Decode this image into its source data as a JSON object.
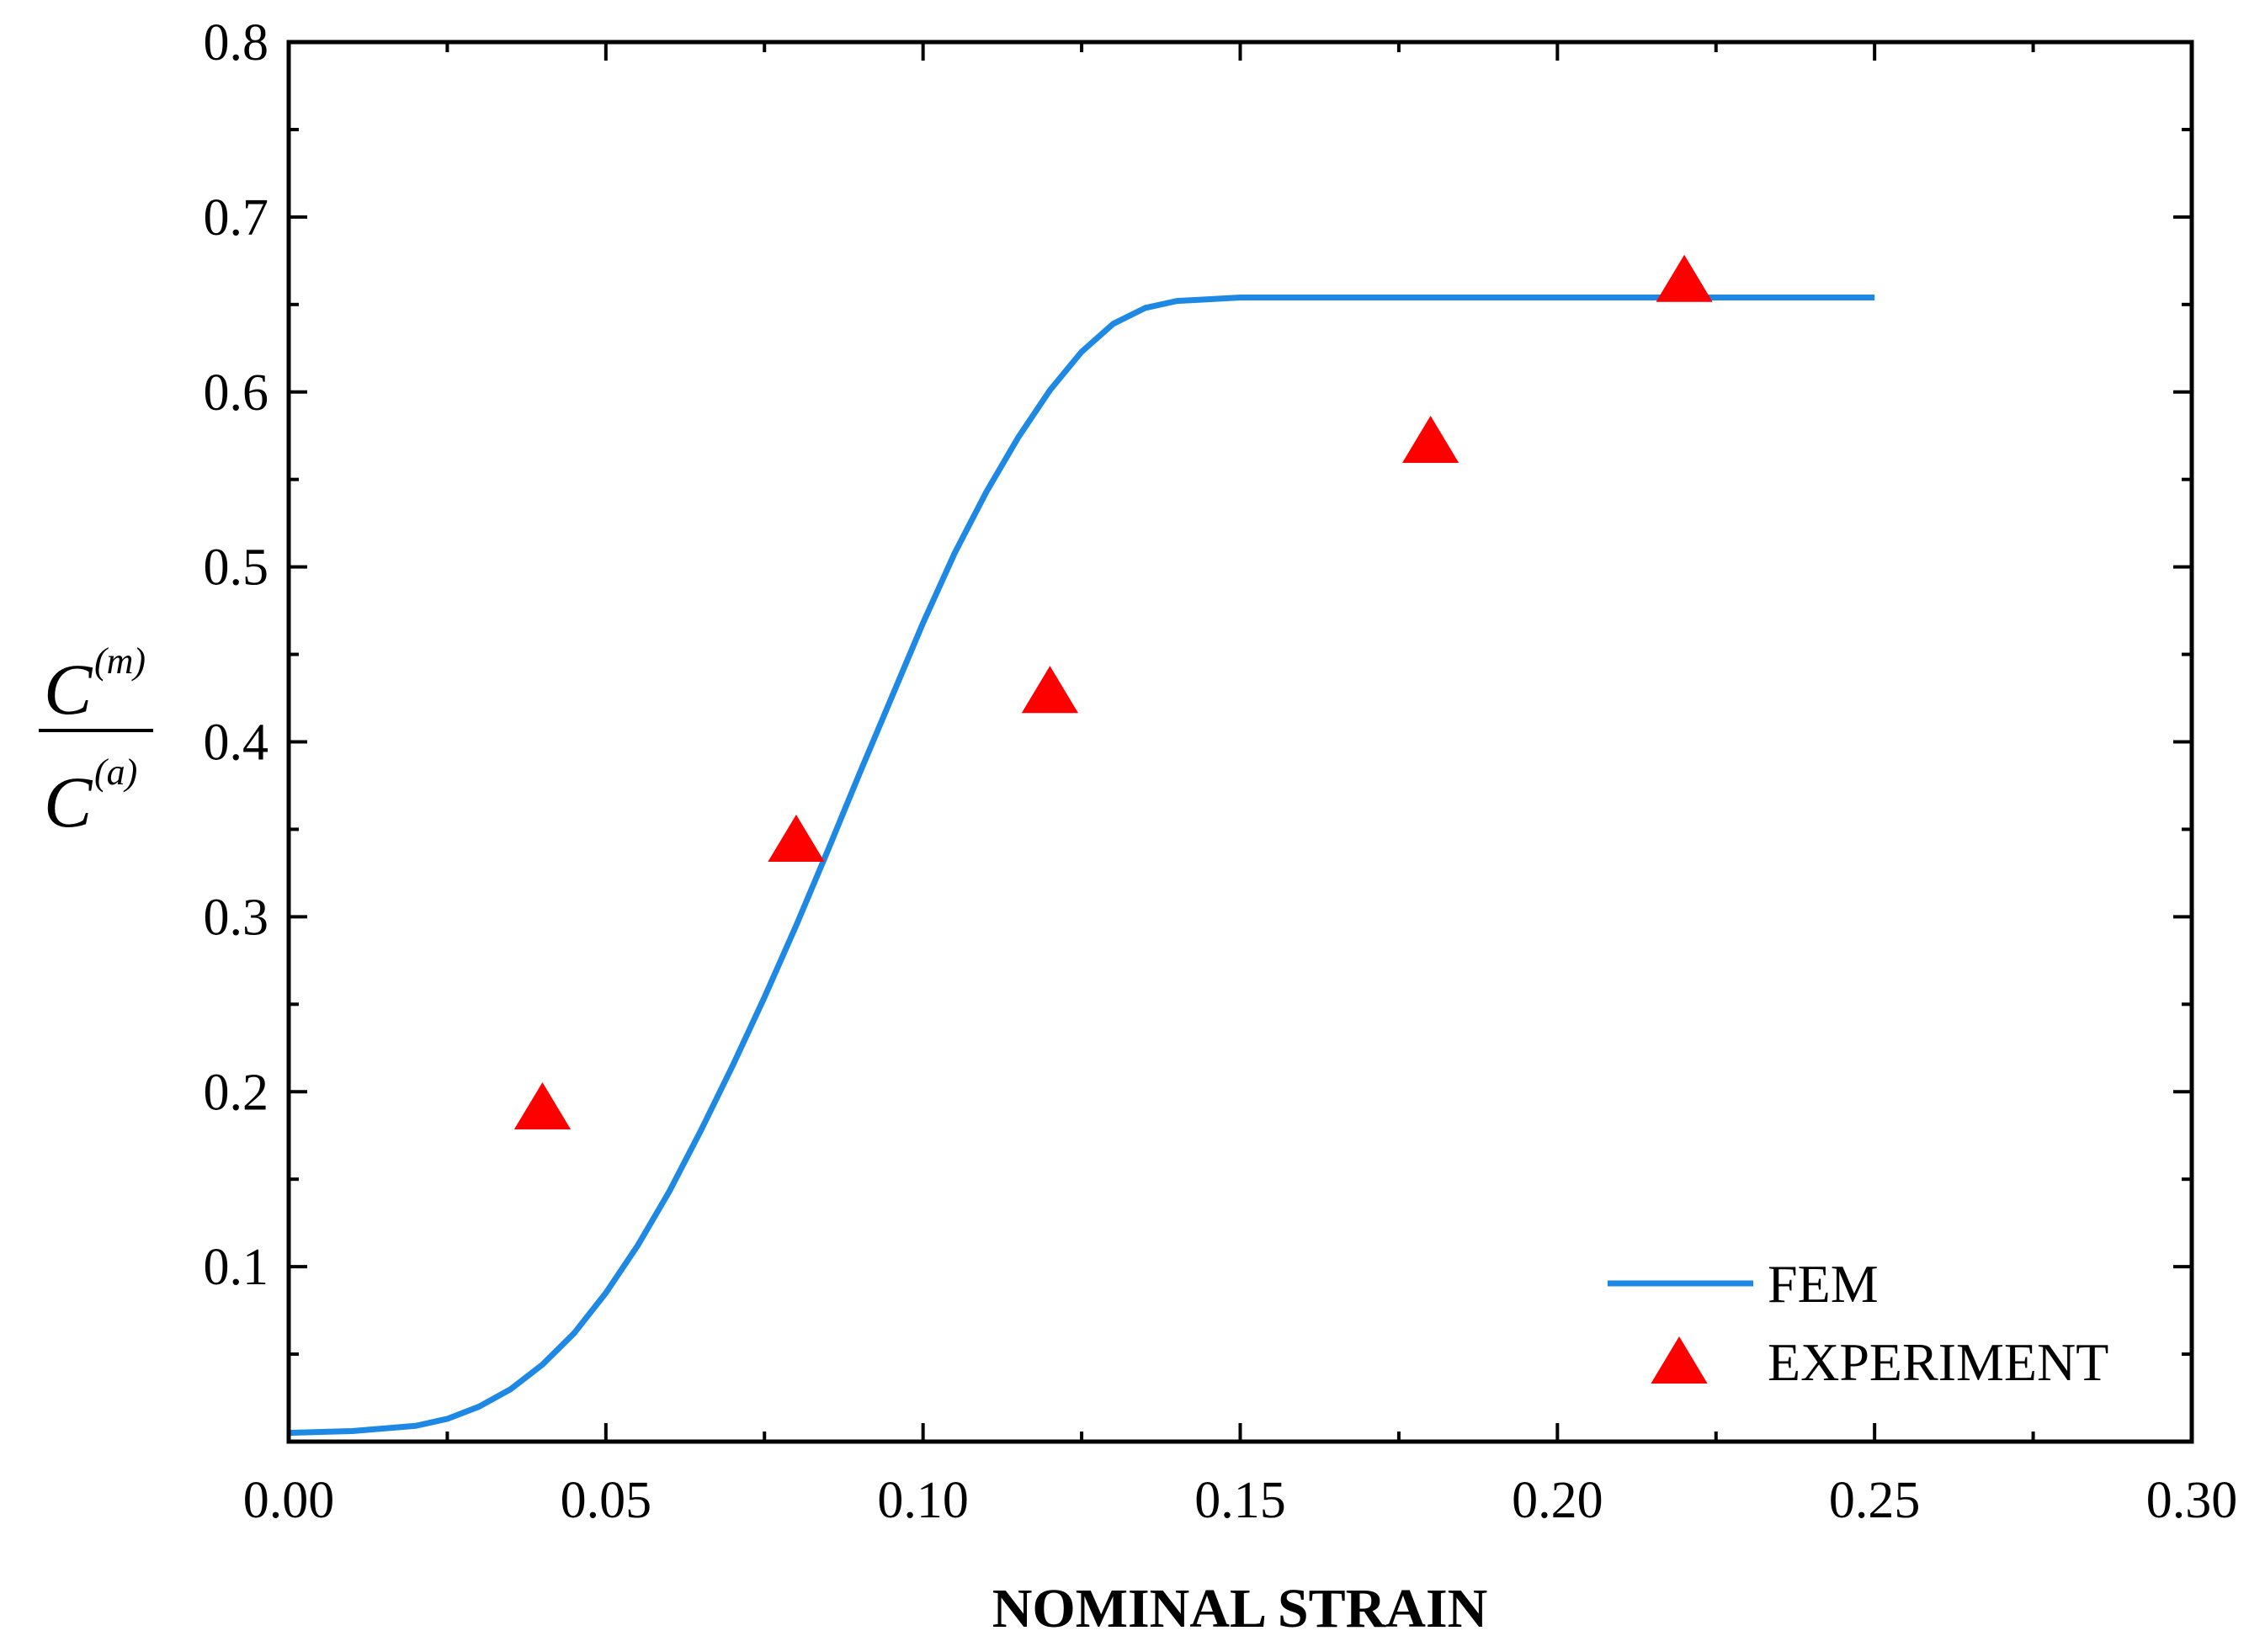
{
  "chart_data": {
    "type": "line",
    "title": "",
    "xlabel": "NOMINAL STRAIN",
    "ylabel": {
      "numerator": {
        "base": "C",
        "superscript": "(m)"
      },
      "denominator": {
        "base": "C",
        "superscript": "(a)"
      }
    },
    "xlim": [
      0.0,
      0.3
    ],
    "ylim": [
      0.0,
      0.8
    ],
    "xticks": [
      0.0,
      0.05,
      0.1,
      0.15,
      0.2,
      0.25,
      0.3
    ],
    "xtick_labels": [
      "0.00",
      "0.05",
      "0.10",
      "0.15",
      "0.20",
      "0.25",
      "0.30"
    ],
    "yticks": [
      0.1,
      0.2,
      0.3,
      0.4,
      0.5,
      0.6,
      0.7,
      0.8
    ],
    "ytick_labels": [
      "0.1",
      "0.2",
      "0.3",
      "0.4",
      "0.5",
      "0.6",
      "0.7",
      "0.8"
    ],
    "grid": false,
    "legend_position": "bottom-right",
    "series": [
      {
        "name": "FEM",
        "kind": "line",
        "color": "#1E88E5",
        "x": [
          0.0,
          0.01,
          0.02,
          0.025,
          0.03,
          0.035,
          0.04,
          0.045,
          0.05,
          0.055,
          0.06,
          0.065,
          0.07,
          0.075,
          0.08,
          0.085,
          0.09,
          0.095,
          0.1,
          0.105,
          0.11,
          0.115,
          0.12,
          0.125,
          0.13,
          0.135,
          0.14,
          0.145,
          0.15,
          0.155,
          0.16,
          0.165,
          0.17,
          0.18,
          0.19,
          0.2,
          0.22,
          0.25
        ],
        "y": [
          0.005,
          0.006,
          0.009,
          0.013,
          0.02,
          0.03,
          0.044,
          0.062,
          0.085,
          0.112,
          0.143,
          0.178,
          0.215,
          0.254,
          0.295,
          0.338,
          0.382,
          0.425,
          0.468,
          0.508,
          0.543,
          0.574,
          0.601,
          0.623,
          0.639,
          0.648,
          0.652,
          0.653,
          0.654,
          0.654,
          0.654,
          0.654,
          0.654,
          0.654,
          0.654,
          0.654,
          0.654,
          0.654
        ]
      },
      {
        "name": "EXPERIMENT",
        "kind": "scatter",
        "marker": "triangle",
        "color": "#FF0000",
        "x": [
          0.04,
          0.08,
          0.12,
          0.18,
          0.22
        ],
        "y": [
          0.19,
          0.343,
          0.428,
          0.571,
          0.663
        ]
      }
    ]
  }
}
